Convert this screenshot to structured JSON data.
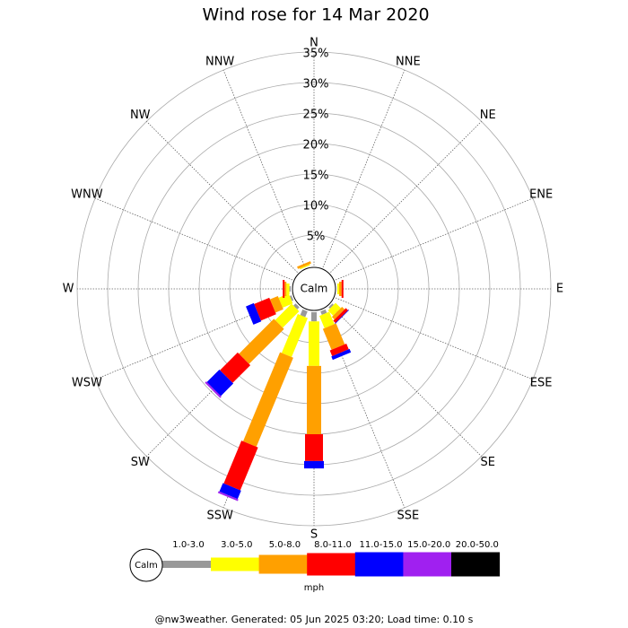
{
  "chart_data": {
    "type": "windrose",
    "title": "Wind rose for 14 Mar 2020",
    "directions": [
      "N",
      "NNE",
      "NE",
      "ENE",
      "E",
      "ESE",
      "SE",
      "SSE",
      "S",
      "SSW",
      "SW",
      "WSW",
      "W",
      "WNW",
      "NW",
      "NNW"
    ],
    "center_label": "Calm",
    "rlim": [
      0,
      35
    ],
    "rticks": [
      {
        "value": 5,
        "label": "5%"
      },
      {
        "value": 10,
        "label": "10%"
      },
      {
        "value": 15,
        "label": "15%"
      },
      {
        "value": 20,
        "label": "20%"
      },
      {
        "value": 25,
        "label": "25%"
      },
      {
        "value": 30,
        "label": "30%"
      },
      {
        "value": 35,
        "label": "35%"
      }
    ],
    "grid": true,
    "series": [
      {
        "name": "1.0-3.0",
        "color": "#999999",
        "values": [
          0,
          0,
          0,
          0,
          0,
          0,
          0.3,
          0.6,
          1.5,
          1.0,
          0.5,
          0.3,
          0.2,
          0,
          0,
          0
        ]
      },
      {
        "name": "3.0-5.0",
        "color": "#ffff00",
        "values": [
          0,
          0,
          0,
          0,
          0.3,
          0,
          1.2,
          2.2,
          7.3,
          6.9,
          3.8,
          1.8,
          0.5,
          0,
          0,
          0.2
        ]
      },
      {
        "name": "5.0-8.0",
        "color": "#ffa000",
        "values": [
          0,
          0,
          0,
          0,
          0.4,
          0,
          0.6,
          3.7,
          11.2,
          15.8,
          8.1,
          1.4,
          0.3,
          0,
          0,
          0.4
        ]
      },
      {
        "name": "8.0-11.0",
        "color": "#ff0000",
        "values": [
          0,
          0,
          0,
          0,
          0.3,
          0,
          0.5,
          1.0,
          4.4,
          7.6,
          4.1,
          2.7,
          0.3,
          0,
          0,
          0
        ]
      },
      {
        "name": "11.0-15.0",
        "color": "#0000ff",
        "values": [
          0,
          0,
          0,
          0,
          0,
          0,
          0.1,
          0.6,
          1.2,
          1.5,
          2.9,
          1.4,
          0,
          0,
          0,
          0
        ]
      },
      {
        "name": "15.0-20.0",
        "color": "#a020f0",
        "values": [
          0,
          0,
          0,
          0,
          0,
          0,
          0,
          0,
          0,
          0.3,
          0.3,
          0,
          0,
          0,
          0,
          0
        ]
      },
      {
        "name": "20.0-50.0",
        "color": "#000000",
        "values": [
          0,
          0,
          0,
          0,
          0,
          0,
          0,
          0,
          0,
          0,
          0,
          0,
          0,
          0,
          0,
          0
        ]
      }
    ],
    "legend_calm": "Calm",
    "legend_unit": "mph",
    "footer": "@nw3weather. Generated: 05 Jun 2025 03:20; Load time: 0.10 s"
  }
}
